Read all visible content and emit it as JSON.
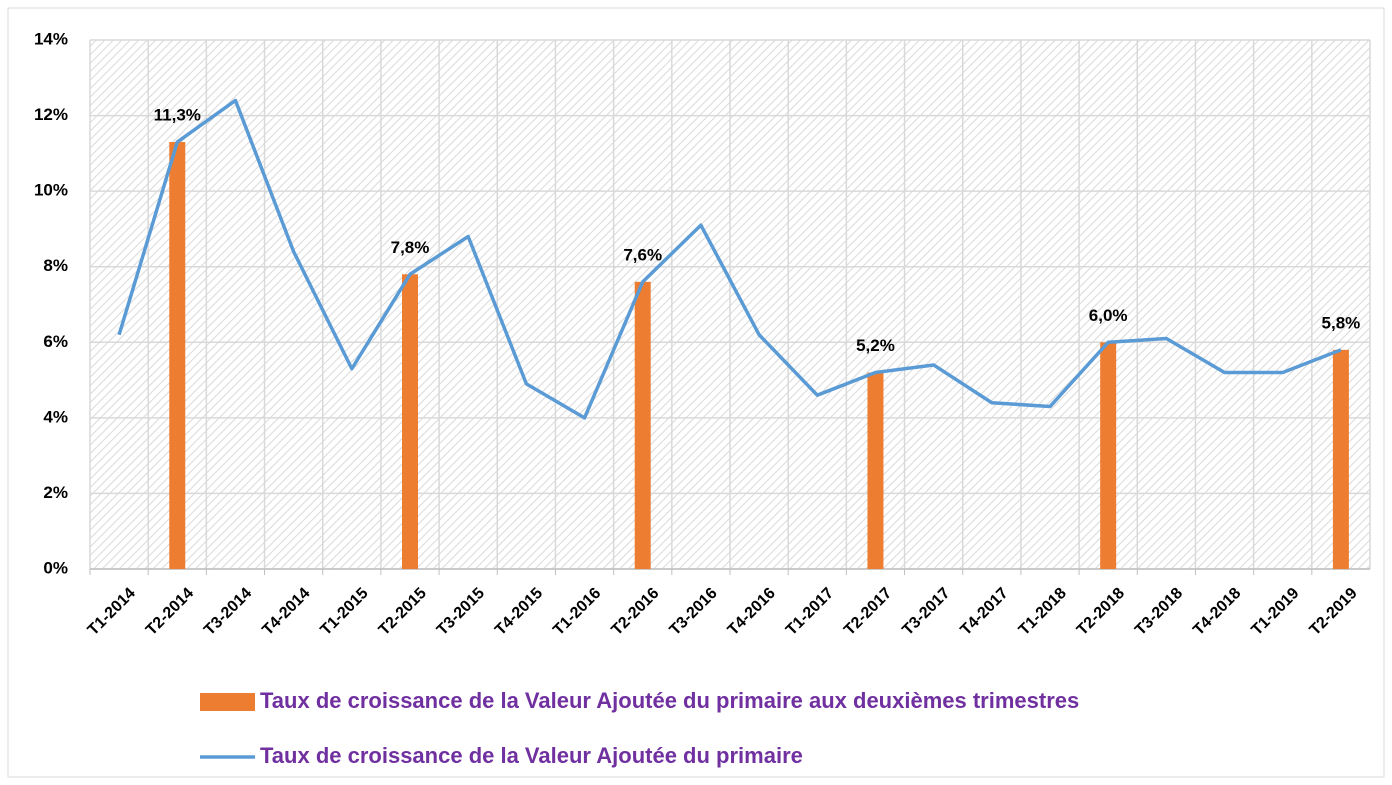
{
  "chart_data": {
    "type": "bar",
    "categories": [
      "T1-2014",
      "T2-2014",
      "T3-2014",
      "T4-2014",
      "T1-2015",
      "T2-2015",
      "T3-2015",
      "T4-2015",
      "T1-2016",
      "T2-2016",
      "T3-2016",
      "T4-2016",
      "T1-2017",
      "T2-2017",
      "T3-2017",
      "T4-2017",
      "T1-2018",
      "T2-2018",
      "T3-2018",
      "T4-2018",
      "T1-2019",
      "T2-2019"
    ],
    "series": [
      {
        "name": "Taux de croissance de la Valeur Ajoutée du primaire aux deuxièmes  trimestres",
        "type": "bar",
        "color": "#ed7d31",
        "values": [
          null,
          11.3,
          null,
          null,
          null,
          7.8,
          null,
          null,
          null,
          7.6,
          null,
          null,
          null,
          5.2,
          null,
          null,
          null,
          6.0,
          null,
          null,
          null,
          5.8
        ],
        "value_labels": [
          null,
          "11,3%",
          null,
          null,
          null,
          "7,8%",
          null,
          null,
          null,
          "7,6%",
          null,
          null,
          null,
          "5,2%",
          null,
          null,
          null,
          "6,0%",
          null,
          null,
          null,
          "5,8%"
        ]
      },
      {
        "name": "Taux de croissance de la Valeur Ajoutée du primaire",
        "type": "line",
        "color": "#5b9bd5",
        "values": [
          6.2,
          11.3,
          12.4,
          8.4,
          5.3,
          7.8,
          8.8,
          4.9,
          4.0,
          7.6,
          9.1,
          6.2,
          4.6,
          5.2,
          5.4,
          4.4,
          4.3,
          6.0,
          6.1,
          5.2,
          5.2,
          5.8
        ]
      }
    ],
    "ylim": [
      0,
      14
    ],
    "yticks": [
      {
        "value": 0,
        "label": "0%"
      },
      {
        "value": 2,
        "label": "2%"
      },
      {
        "value": 4,
        "label": "4%"
      },
      {
        "value": 6,
        "label": "6%"
      },
      {
        "value": 8,
        "label": "8%"
      },
      {
        "value": 10,
        "label": "10%"
      },
      {
        "value": 12,
        "label": "12%"
      },
      {
        "value": 14,
        "label": "14%"
      }
    ],
    "grid": true
  }
}
